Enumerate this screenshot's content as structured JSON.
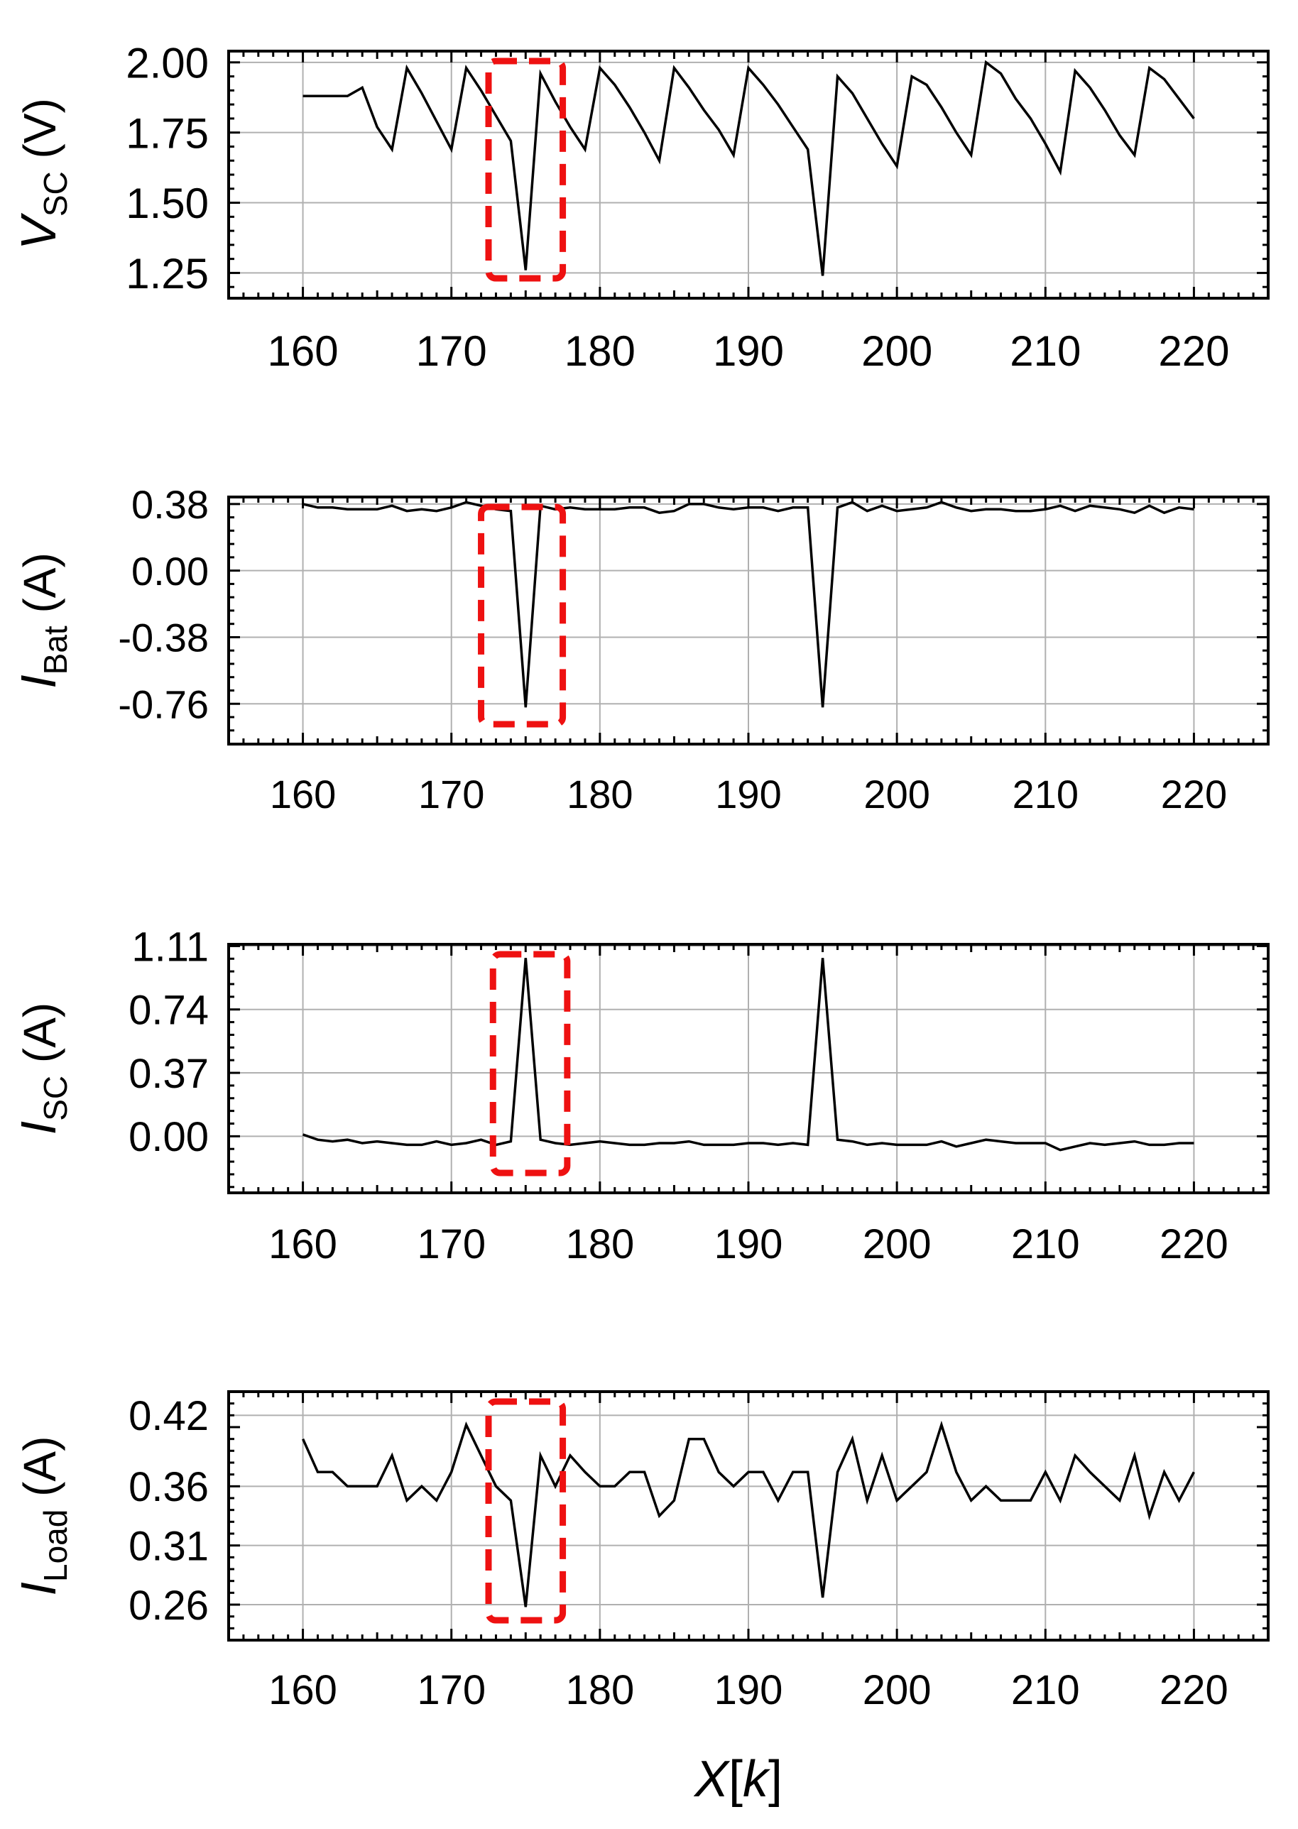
{
  "chart_data": [
    {
      "type": "line",
      "ylabel": {
        "main": "V",
        "sub": "SC",
        "unit": "(V)"
      },
      "xlim": [
        155,
        225
      ],
      "ylim": [
        1.16,
        2.04
      ],
      "yticks": [
        "1.25",
        "1.50",
        "1.75",
        "2.00"
      ],
      "xticks": [
        "160",
        "170",
        "180",
        "190",
        "200",
        "210",
        "220"
      ],
      "x": [
        160,
        161,
        162,
        163,
        164,
        165,
        166,
        167,
        168,
        169,
        170,
        171,
        172,
        173,
        174,
        175,
        176,
        177,
        178,
        179,
        180,
        181,
        182,
        183,
        184,
        185,
        186,
        187,
        188,
        189,
        190,
        191,
        192,
        193,
        194,
        195,
        196,
        197,
        198,
        199,
        200,
        201,
        202,
        203,
        204,
        205,
        206,
        207,
        208,
        209,
        210,
        211,
        212,
        213,
        214,
        215,
        216,
        217,
        218,
        219,
        220
      ],
      "values": [
        1.88,
        1.88,
        1.88,
        1.88,
        1.91,
        1.77,
        1.69,
        1.98,
        1.89,
        1.79,
        1.69,
        1.98,
        1.9,
        1.81,
        1.72,
        1.26,
        1.96,
        1.86,
        1.77,
        1.69,
        1.98,
        1.92,
        1.84,
        1.75,
        1.65,
        1.98,
        1.91,
        1.83,
        1.76,
        1.67,
        1.98,
        1.92,
        1.85,
        1.77,
        1.69,
        1.24,
        1.95,
        1.89,
        1.8,
        1.71,
        1.63,
        1.95,
        1.92,
        1.84,
        1.75,
        1.67,
        2,
        1.96,
        1.87,
        1.8,
        1.71,
        1.61,
        1.97,
        1.91,
        1.83,
        1.74,
        1.67,
        1.98,
        1.94,
        1.87,
        1.8
      ],
      "highlight_box_x": [
        172.5,
        177.5
      ]
    },
    {
      "type": "line",
      "ylabel": {
        "main": "I",
        "sub": "Bat",
        "unit": "(A)"
      },
      "xlim": [
        155,
        225
      ],
      "ylim": [
        -0.99,
        0.42
      ],
      "yticks": [
        "-0.76",
        "-0.38",
        "0.00",
        "0.38"
      ],
      "ytick_values": [
        -0.76,
        -0.38,
        0.0,
        0.38
      ],
      "xticks": [
        "160",
        "170",
        "180",
        "190",
        "200",
        "210",
        "220"
      ],
      "x": [
        160,
        161,
        162,
        163,
        164,
        165,
        166,
        167,
        168,
        169,
        170,
        171,
        172,
        173,
        174,
        175,
        176,
        177,
        178,
        179,
        180,
        181,
        182,
        183,
        184,
        185,
        186,
        187,
        188,
        189,
        190,
        191,
        192,
        193,
        194,
        195,
        196,
        197,
        198,
        199,
        200,
        201,
        202,
        203,
        204,
        205,
        206,
        207,
        208,
        209,
        210,
        211,
        212,
        213,
        214,
        215,
        216,
        217,
        218,
        219,
        220
      ],
      "values": [
        0.38,
        0.36,
        0.36,
        0.35,
        0.35,
        0.35,
        0.37,
        0.34,
        0.35,
        0.34,
        0.36,
        0.39,
        0.37,
        0.35,
        0.34,
        -0.78,
        0.37,
        0.35,
        0.36,
        0.35,
        0.35,
        0.35,
        0.36,
        0.36,
        0.33,
        0.34,
        0.38,
        0.38,
        0.36,
        0.35,
        0.36,
        0.36,
        0.34,
        0.36,
        0.36,
        -0.78,
        0.36,
        0.39,
        0.34,
        0.37,
        0.34,
        0.35,
        0.36,
        0.39,
        0.36,
        0.34,
        0.35,
        0.35,
        0.34,
        0.34,
        0.35,
        0.37,
        0.34,
        0.37,
        0.36,
        0.35,
        0.33,
        0.37,
        0.33,
        0.36,
        0.35
      ],
      "highlight_box_x": [
        172,
        177.5
      ]
    },
    {
      "type": "line",
      "ylabel": {
        "main": "I",
        "sub": "SC",
        "unit": "(A)"
      },
      "xlim": [
        155,
        225
      ],
      "ylim": [
        -0.33,
        1.12
      ],
      "yticks": [
        "0.00",
        "0.37",
        "0.74",
        "1.11"
      ],
      "ytick_values": [
        0.0,
        0.37,
        0.74,
        1.11
      ],
      "xticks": [
        "160",
        "170",
        "180",
        "190",
        "200",
        "210",
        "220"
      ],
      "x": [
        160,
        161,
        162,
        163,
        164,
        165,
        166,
        167,
        168,
        169,
        170,
        171,
        172,
        173,
        174,
        175,
        176,
        177,
        178,
        179,
        180,
        181,
        182,
        183,
        184,
        185,
        186,
        187,
        188,
        189,
        190,
        191,
        192,
        193,
        194,
        195,
        196,
        197,
        198,
        199,
        200,
        201,
        202,
        203,
        204,
        205,
        206,
        207,
        208,
        209,
        210,
        211,
        212,
        213,
        214,
        215,
        216,
        217,
        218,
        219,
        220
      ],
      "values": [
        0.01,
        -0.02,
        -0.03,
        -0.02,
        -0.04,
        -0.03,
        -0.04,
        -0.05,
        -0.05,
        -0.03,
        -0.05,
        -0.04,
        -0.02,
        -0.05,
        -0.03,
        1.04,
        -0.02,
        -0.04,
        -0.05,
        -0.04,
        -0.03,
        -0.04,
        -0.05,
        -0.05,
        -0.04,
        -0.04,
        -0.03,
        -0.05,
        -0.05,
        -0.05,
        -0.04,
        -0.04,
        -0.05,
        -0.04,
        -0.05,
        1.04,
        -0.02,
        -0.03,
        -0.05,
        -0.04,
        -0.05,
        -0.05,
        -0.05,
        -0.03,
        -0.06,
        -0.04,
        -0.02,
        -0.03,
        -0.04,
        -0.04,
        -0.04,
        -0.08,
        -0.06,
        -0.04,
        -0.05,
        -0.04,
        -0.03,
        -0.05,
        -0.05,
        -0.04,
        -0.04
      ],
      "highlight_box_x": [
        172.8,
        177.8
      ]
    },
    {
      "type": "line",
      "ylabel": {
        "main": "I",
        "sub": "Load",
        "unit": "(A)"
      },
      "xlim": [
        155,
        225
      ],
      "ylim": [
        0.23,
        0.44
      ],
      "yticks": [
        "0.26",
        "0.31",
        "0.36",
        "0.42"
      ],
      "ytick_values": [
        0.26,
        0.31,
        0.36,
        0.42
      ],
      "xticks": [
        "160",
        "170",
        "180",
        "190",
        "200",
        "210",
        "220"
      ],
      "x": [
        160,
        161,
        162,
        163,
        164,
        165,
        166,
        167,
        168,
        169,
        170,
        171,
        172,
        173,
        174,
        175,
        176,
        177,
        178,
        179,
        180,
        181,
        182,
        183,
        184,
        185,
        186,
        187,
        188,
        189,
        190,
        191,
        192,
        193,
        194,
        195,
        196,
        197,
        198,
        199,
        200,
        201,
        202,
        203,
        204,
        205,
        206,
        207,
        208,
        209,
        210,
        211,
        212,
        213,
        214,
        215,
        216,
        217,
        218,
        219,
        220
      ],
      "values": [
        0.4,
        0.372,
        0.372,
        0.36,
        0.36,
        0.36,
        0.386,
        0.348,
        0.36,
        0.348,
        0.372,
        0.412,
        0.386,
        0.36,
        0.348,
        0.258,
        0.386,
        0.36,
        0.386,
        0.372,
        0.36,
        0.36,
        0.372,
        0.372,
        0.335,
        0.348,
        0.4,
        0.4,
        0.372,
        0.36,
        0.372,
        0.372,
        0.348,
        0.372,
        0.372,
        0.266,
        0.372,
        0.4,
        0.348,
        0.386,
        0.348,
        0.36,
        0.372,
        0.412,
        0.372,
        0.348,
        0.36,
        0.348,
        0.348,
        0.348,
        0.372,
        0.348,
        0.386,
        0.372,
        0.36,
        0.348,
        0.386,
        0.335,
        0.372,
        0.348,
        0.372
      ],
      "highlight_box_x": [
        172.5,
        177.5
      ]
    }
  ],
  "xlabel": {
    "var": "X",
    "arg": "k"
  },
  "colors": {
    "line": "#000000",
    "highlight": "#ee1111",
    "grid": "#b0b0b0",
    "axes": "#000000"
  }
}
